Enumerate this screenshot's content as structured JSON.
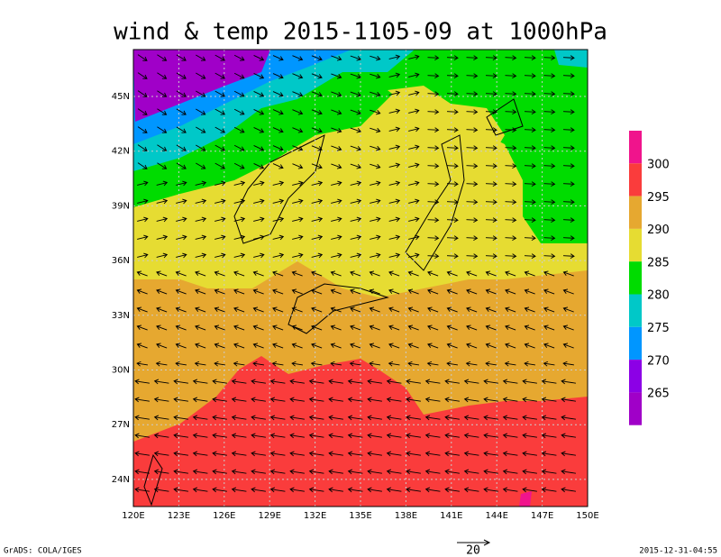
{
  "title": "wind & temp 2015-1105-09 at 1000hPa",
  "map": {
    "lat_labels": [
      "45N",
      "42N",
      "39N",
      "36N",
      "33N",
      "30N",
      "27N",
      "24N"
    ],
    "lon_labels": [
      "120E",
      "123E",
      "126E",
      "129E",
      "132E",
      "135E",
      "138E",
      "141E",
      "144E",
      "147E",
      "150E"
    ]
  },
  "colorbar": {
    "labels": [
      300,
      295,
      290,
      285,
      280,
      275,
      270,
      265
    ]
  },
  "vector_scale": {
    "label": 20
  },
  "footer": {
    "left": "GrADS: COLA/IGES",
    "right": "2015-12-31-04:55"
  }
}
